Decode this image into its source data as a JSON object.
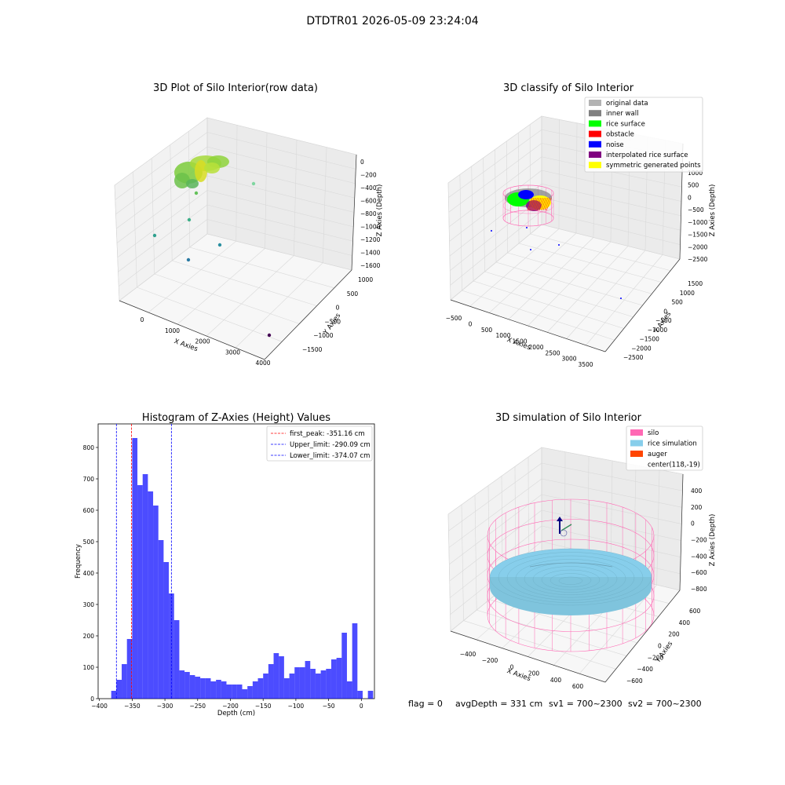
{
  "figure": {
    "suptitle": "DTDTR01 2026-05-09 23:24:04",
    "footer": {
      "flag": "flag = 0",
      "avg_depth": "avgDepth = 331 cm",
      "sv1": "sv1 = 700~2300",
      "sv2": "sv2 = 700~2300"
    }
  },
  "panels": {
    "raw": {
      "title": "3D Plot of Silo Interior(row data)",
      "xlabel": "X Axies",
      "ylabel": "Y Axies",
      "zlabel": "Z Axies (Depth)",
      "xticks": [
        "0",
        "1000",
        "2000",
        "3000",
        "4000"
      ],
      "yticks": [
        "1000",
        "500",
        "0",
        "−500",
        "−1000",
        "−1500"
      ],
      "zticks": [
        "0",
        "−200",
        "−400",
        "−600",
        "−800",
        "−1000",
        "−1200",
        "−1400",
        "−1600"
      ]
    },
    "classify": {
      "title": "3D classify of Silo Interior",
      "xlabel": "X Axies",
      "ylabel": "Y Axies",
      "zlabel": "Z Axies (Depth)",
      "xticks": [
        "−500",
        "0",
        "500",
        "1000",
        "1500",
        "2000",
        "2500",
        "3000",
        "3500"
      ],
      "yticks": [
        "1500",
        "1000",
        "500",
        "0",
        "−500",
        "−1000",
        "−1500",
        "−2000",
        "−2500"
      ],
      "zticks": [
        "1000",
        "500",
        "0",
        "−500",
        "−1000",
        "−1500",
        "−2000",
        "−2500"
      ],
      "zticks_hidden_top": "1500",
      "legend": [
        {
          "label": "original data",
          "color": "#b3b3b3"
        },
        {
          "label": "inner wall",
          "color": "#808080"
        },
        {
          "label": "rice surface",
          "color": "#00ff00"
        },
        {
          "label": "obstacle",
          "color": "#ff0000"
        },
        {
          "label": "noise",
          "color": "#0000ff"
        },
        {
          "label": "interpolated rice surface",
          "color": "#800080"
        },
        {
          "label": "symmetric generated points",
          "color": "#ffff00"
        }
      ]
    },
    "simulation": {
      "title": "3D simulation of Silo Interior",
      "xlabel": "X Axies",
      "ylabel": "Y Axies",
      "zlabel": "Z Axies (Depth)",
      "xticks": [
        "−400",
        "−200",
        "0",
        "200",
        "400",
        "600"
      ],
      "yticks": [
        "600",
        "400",
        "200",
        "0",
        "−200",
        "−400",
        "−600"
      ],
      "zticks": [
        "400",
        "200",
        "0",
        "−200",
        "−400",
        "−600",
        "−800"
      ],
      "legend": [
        {
          "label": "silo",
          "color": "#ff69b4"
        },
        {
          "label": "rice simulation",
          "color": "#87ceeb"
        },
        {
          "label": "auger",
          "color": "#ff4500"
        },
        {
          "label": "center(118,-19)",
          "color": ""
        }
      ]
    }
  },
  "chart_data": {
    "type": "bar",
    "title": "Histogram of Z-Axies (Height) Values",
    "xlabel": "Depth (cm)",
    "ylabel": "Frequency",
    "xlim": [
      -402,
      20
    ],
    "ylim": [
      0,
      875
    ],
    "xticks": [
      -400,
      -350,
      -300,
      -250,
      -200,
      -150,
      -100,
      -50,
      0
    ],
    "xtick_labels": [
      "−400",
      "−350",
      "−300",
      "−250",
      "−200",
      "−150",
      "−100",
      "−50",
      "0"
    ],
    "yticks": [
      0,
      100,
      200,
      300,
      400,
      500,
      600,
      700,
      800
    ],
    "yticks_labels": [
      "0",
      "100",
      "200",
      "300",
      "400",
      "500",
      "600",
      "700",
      "800"
    ],
    "bins_start": -382,
    "bin_width": 8,
    "values": [
      25,
      60,
      110,
      190,
      830,
      680,
      715,
      660,
      615,
      505,
      435,
      335,
      250,
      90,
      85,
      75,
      70,
      65,
      65,
      55,
      60,
      55,
      45,
      45,
      45,
      30,
      40,
      55,
      65,
      80,
      110,
      145,
      135,
      65,
      80,
      100,
      100,
      120,
      95,
      80,
      90,
      95,
      125,
      130,
      210,
      55,
      240,
      25,
      0,
      25
    ],
    "bar_color": "#0000ff",
    "vlines": [
      {
        "label": "first_peak: -351.16 cm",
        "x": -351.16,
        "color": "#ff0000"
      },
      {
        "label": "Upper_limit: -290.09 cm",
        "x": -290.09,
        "color": "#0000ff"
      },
      {
        "label": "Lower_limit: -374.07 cm",
        "x": -374.07,
        "color": "#0000ff"
      }
    ],
    "legend_position": "top-right"
  }
}
